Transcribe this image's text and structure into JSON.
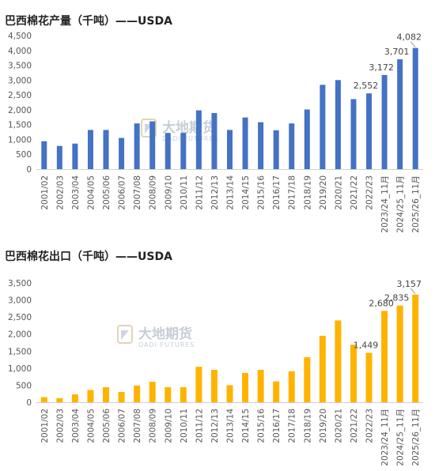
{
  "chart_data": [
    {
      "type": "bar",
      "title": "巴西棉花产量（千吨）——USDA",
      "color": "#4472C4",
      "categories": [
        "2001/02",
        "2002/03",
        "2003/04",
        "2004/05",
        "2005/06",
        "2006/07",
        "2007/08",
        "2008/09",
        "2009/10",
        "2010/11",
        "2011/12",
        "2012/13",
        "2013/14",
        "2014/15",
        "2015/16",
        "2016/17",
        "2017/18",
        "2018/19",
        "2019/20",
        "2020/21",
        "2021/22",
        "2022/23",
        "2023/24_11月",
        "2024/25_11月",
        "2025/26_11月"
      ],
      "values": [
        940,
        780,
        860,
        1320,
        1320,
        1050,
        1540,
        1610,
        1220,
        1220,
        1980,
        1890,
        1320,
        1740,
        1580,
        1310,
        1540,
        2010,
        2840,
        3000,
        2360,
        2552,
        3172,
        3701,
        4082
      ],
      "data_labels": {
        "21": "2,552",
        "22": "3,172",
        "23": "3,701",
        "24": "4,082"
      },
      "yticks": [
        "0",
        "500",
        "1,000",
        "1,500",
        "2,000",
        "2,500",
        "3,000",
        "3,500",
        "4,000",
        "4,500"
      ],
      "ylim": [
        0,
        4500
      ]
    },
    {
      "type": "bar",
      "title": "巴西棉花出口（千吨）——USDA",
      "color": "#FFB300",
      "categories": [
        "2001/02",
        "2002/03",
        "2003/04",
        "2004/05",
        "2005/06",
        "2006/07",
        "2007/08",
        "2008/09",
        "2009/10",
        "2010/11",
        "2011/12",
        "2012/13",
        "2013/14",
        "2014/15",
        "2015/16",
        "2016/17",
        "2017/18",
        "2018/19",
        "2019/20",
        "2020/21",
        "2021/22",
        "2022/23",
        "2023/24_11月",
        "2024/25_11月",
        "2025/26_11月"
      ],
      "values": [
        150,
        120,
        230,
        360,
        440,
        300,
        490,
        600,
        440,
        440,
        1040,
        950,
        500,
        860,
        950,
        610,
        910,
        1320,
        1950,
        2400,
        1690,
        1449,
        2680,
        2835,
        3157
      ],
      "data_labels": {
        "21": "1,449",
        "22": "2,680",
        "23": "2,835",
        "24": "3,157"
      },
      "yticks": [
        "0",
        "500",
        "1,000",
        "1,500",
        "2,000",
        "2,500",
        "3,000",
        "3,500"
      ],
      "ylim": [
        0,
        3500
      ]
    }
  ],
  "watermark": {
    "cn": "大地期货",
    "en": "DADI FUTURES"
  }
}
